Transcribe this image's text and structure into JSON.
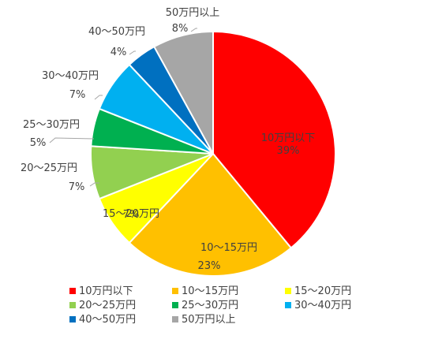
{
  "chart_data": {
    "type": "pie",
    "title": "",
    "categories": [
      "10万円以下",
      "10〜15万円",
      "15〜20万円",
      "20〜25万円",
      "25〜30万円",
      "30〜40万円",
      "40〜50万円",
      "50万円以上"
    ],
    "values": [
      39,
      23,
      7,
      7,
      5,
      7,
      4,
      8
    ],
    "value_labels": [
      "39%",
      "23%",
      "7%",
      "7%",
      "5%",
      "7%",
      "4%",
      "8%"
    ],
    "colors": [
      "#FF0000",
      "#FFC000",
      "#FFFF00",
      "#92D050",
      "#00B050",
      "#00B0F0",
      "#0070C0",
      "#A6A6A6"
    ],
    "start_angle_deg": 0,
    "direction": "clockwise",
    "legend": {
      "position": "bottom",
      "items": [
        "10万円以下",
        "10〜15万円",
        "15〜20万円",
        "20〜25万円",
        "25〜30万円",
        "30〜40万円",
        "40〜50万円",
        "50万円以上"
      ]
    }
  }
}
